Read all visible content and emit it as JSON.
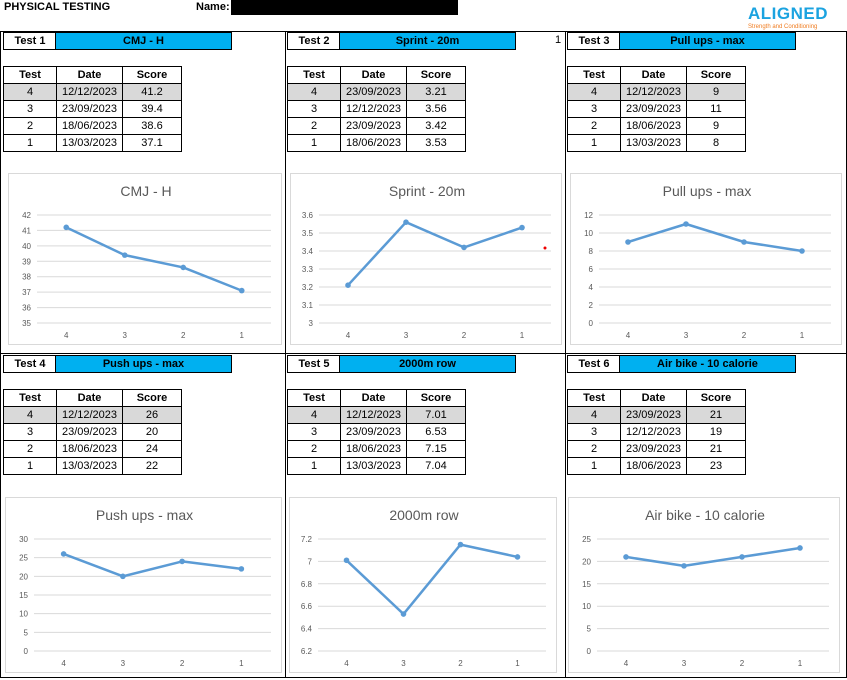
{
  "header": {
    "title": "PHYSICAL TESTING",
    "name_label": "Name:",
    "logo_text": "ALIGNED",
    "logo_sub": "Strength and Conditioning",
    "stray_cell": "1"
  },
  "table_headers": [
    "Test",
    "Date",
    "Score"
  ],
  "colors": {
    "accent": "#00b0f0",
    "line": "#5b9bd5",
    "highlight": "#d9d9d9"
  },
  "panels": [
    {
      "label": "Test 1",
      "title": "CMJ - H",
      "rows": [
        [
          "4",
          "12/12/2023",
          "41.2"
        ],
        [
          "3",
          "23/09/2023",
          "39.4"
        ],
        [
          "2",
          "18/06/2023",
          "38.6"
        ],
        [
          "1",
          "13/03/2023",
          "37.1"
        ]
      ]
    },
    {
      "label": "Test 2",
      "title": "Sprint - 20m",
      "rows": [
        [
          "4",
          "23/09/2023",
          "3.21"
        ],
        [
          "3",
          "12/12/2023",
          "3.56"
        ],
        [
          "2",
          "23/09/2023",
          "3.42"
        ],
        [
          "1",
          "18/06/2023",
          "3.53"
        ]
      ]
    },
    {
      "label": "Test 3",
      "title": "Pull ups - max",
      "rows": [
        [
          "4",
          "12/12/2023",
          "9"
        ],
        [
          "3",
          "23/09/2023",
          "11"
        ],
        [
          "2",
          "18/06/2023",
          "9"
        ],
        [
          "1",
          "13/03/2023",
          "8"
        ]
      ]
    },
    {
      "label": "Test 4",
      "title": "Push ups - max",
      "rows": [
        [
          "4",
          "12/12/2023",
          "26"
        ],
        [
          "3",
          "23/09/2023",
          "20"
        ],
        [
          "2",
          "18/06/2023",
          "24"
        ],
        [
          "1",
          "13/03/2023",
          "22"
        ]
      ]
    },
    {
      "label": "Test 5",
      "title": "2000m row",
      "rows": [
        [
          "4",
          "12/12/2023",
          "7.01"
        ],
        [
          "3",
          "23/09/2023",
          "6.53"
        ],
        [
          "2",
          "18/06/2023",
          "7.15"
        ],
        [
          "1",
          "13/03/2023",
          "7.04"
        ]
      ]
    },
    {
      "label": "Test 6",
      "title": "Air bike - 10 calorie",
      "rows": [
        [
          "4",
          "23/09/2023",
          "21"
        ],
        [
          "3",
          "12/12/2023",
          "19"
        ],
        [
          "2",
          "23/09/2023",
          "21"
        ],
        [
          "1",
          "18/06/2023",
          "23"
        ]
      ]
    }
  ],
  "chart_data": [
    {
      "type": "line",
      "title": "CMJ - H",
      "categories": [
        "4",
        "3",
        "2",
        "1"
      ],
      "values": [
        41.2,
        39.4,
        38.6,
        37.1
      ],
      "ylim": [
        35,
        42
      ],
      "yticks": [
        "35",
        "36",
        "37",
        "38",
        "39",
        "40",
        "41",
        "42"
      ],
      "grid": true
    },
    {
      "type": "line",
      "title": "Sprint - 20m",
      "categories": [
        "4",
        "3",
        "2",
        "1"
      ],
      "values": [
        3.21,
        3.56,
        3.42,
        3.53
      ],
      "ylim": [
        3,
        3.6
      ],
      "yticks": [
        "3",
        "3.1",
        "3.2",
        "3.3",
        "3.4",
        "3.5",
        "3.6"
      ],
      "grid": true
    },
    {
      "type": "line",
      "title": "Pull ups - max",
      "categories": [
        "4",
        "3",
        "2",
        "1"
      ],
      "values": [
        9,
        11,
        9,
        8
      ],
      "ylim": [
        0,
        12
      ],
      "yticks": [
        "0",
        "2",
        "4",
        "6",
        "8",
        "10",
        "12"
      ],
      "grid": true
    },
    {
      "type": "line",
      "title": "Push ups - max",
      "categories": [
        "4",
        "3",
        "2",
        "1"
      ],
      "values": [
        26,
        20,
        24,
        22
      ],
      "ylim": [
        0,
        30
      ],
      "yticks": [
        "0",
        "5",
        "10",
        "15",
        "20",
        "25",
        "30"
      ],
      "grid": true
    },
    {
      "type": "line",
      "title": "2000m row",
      "categories": [
        "4",
        "3",
        "2",
        "1"
      ],
      "values": [
        7.01,
        6.53,
        7.15,
        7.04
      ],
      "ylim": [
        6.2,
        7.2
      ],
      "yticks": [
        "6.2",
        "6.4",
        "6.6",
        "6.8",
        "7",
        "7.2"
      ],
      "grid": true
    },
    {
      "type": "line",
      "title": "Air bike - 10 calorie",
      "categories": [
        "4",
        "3",
        "2",
        "1"
      ],
      "values": [
        21,
        19,
        21,
        23
      ],
      "ylim": [
        0,
        25
      ],
      "yticks": [
        "0",
        "5",
        "10",
        "15",
        "20",
        "25"
      ],
      "grid": true
    }
  ]
}
